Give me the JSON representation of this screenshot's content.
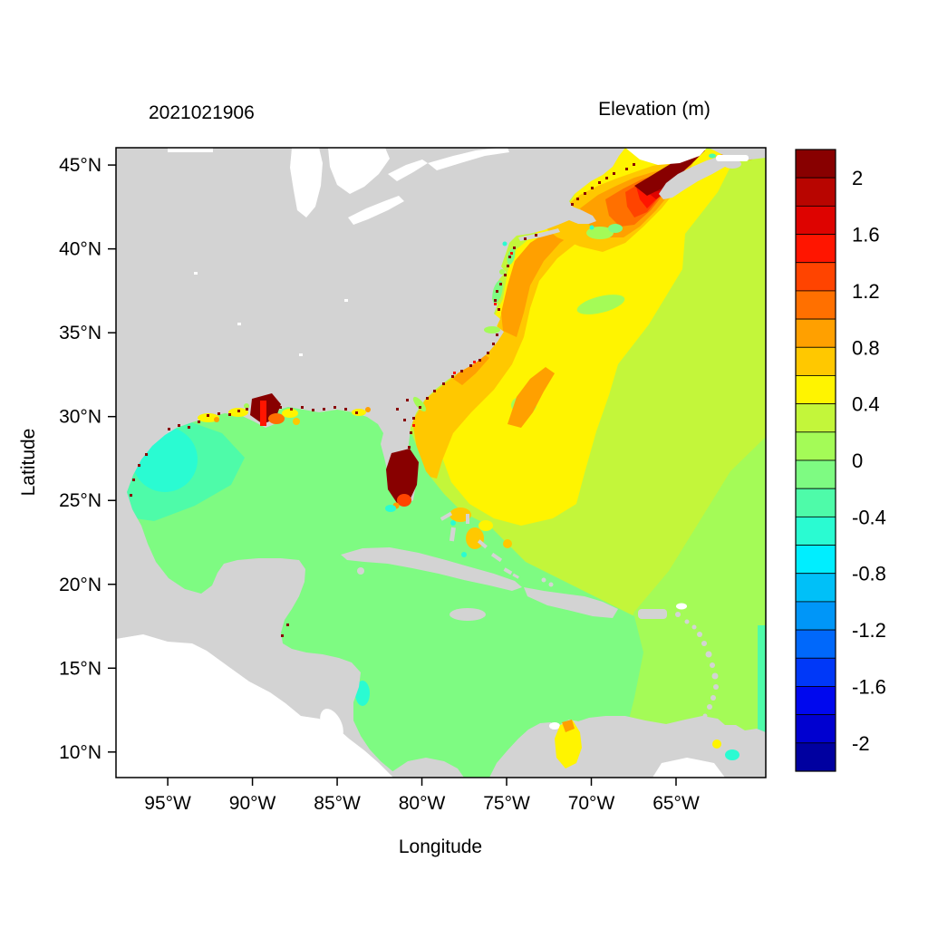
{
  "chart_data": {
    "type": "heatmap",
    "subtype": "filled-contour geographic map (ocean model sea-surface elevation)",
    "title": "2021021906",
    "legend_title": "Elevation (m)",
    "xlabel": "Longitude",
    "ylabel": "Latitude",
    "x_ticks": [
      "95°W",
      "90°W",
      "85°W",
      "80°W",
      "75°W",
      "70°W",
      "65°W"
    ],
    "y_ticks": [
      "45°N",
      "40°N",
      "35°N",
      "30°N",
      "25°N",
      "20°N",
      "15°N",
      "10°N"
    ],
    "x_range_deg_west": [
      98.1,
      59.8
    ],
    "y_range_deg_north": [
      8.5,
      46.0
    ],
    "grid": false,
    "land_color": "#d3d3d3",
    "no_data_color": "#ffffff",
    "colorbar": {
      "position": "right",
      "tick_labels": [
        "2",
        "1.6",
        "1.2",
        "0.8",
        "0.4",
        "0",
        "-0.4",
        "-0.8",
        "-1.2",
        "-1.6",
        "-2"
      ],
      "levels": [
        -2.2,
        -2.0,
        -1.8,
        -1.6,
        -1.4,
        -1.2,
        -1.0,
        -0.8,
        -0.6,
        -0.4,
        -0.2,
        0,
        0.2,
        0.4,
        0.6,
        0.8,
        1.0,
        1.2,
        1.4,
        1.6,
        1.8,
        2.0,
        2.2
      ],
      "colors_bottom_to_top": [
        "#0000A0",
        "#0000D0",
        "#0008EE",
        "#0038F8",
        "#0068FB",
        "#0096F8",
        "#00C0F8",
        "#00EEFF",
        "#2AFBD2",
        "#4EFBA9",
        "#7EFB82",
        "#A4FB57",
        "#C3F63A",
        "#FFF400",
        "#FFC800",
        "#FFA000",
        "#FF7000",
        "#FF4400",
        "#FF1500",
        "#DE0300",
        "#B80500",
        "#880000"
      ]
    },
    "regions": [
      {
        "area": "Gulf of Mexico, central and eastern",
        "elevation_m": "-0.2 to 0"
      },
      {
        "area": "Gulf of Mexico, northwest shelf (Texas-Mexico)",
        "elevation_m": "-0.6 to -0.2"
      },
      {
        "area": "Caribbean Sea",
        "elevation_m": "-0.2 to 0.2"
      },
      {
        "area": "Open Atlantic east of ~70W",
        "elevation_m": "0.2 to 0.4"
      },
      {
        "area": "Atlantic southeast corner / east of Antilles",
        "elevation_m": "0 to 0.2"
      },
      {
        "area": "Western Atlantic / Mid-Atlantic Bight",
        "elevation_m": "0.4 to 0.6"
      },
      {
        "area": "US southeast coastal band (Gulf Stream edge)",
        "elevation_m": "0.6 to 1.0"
      },
      {
        "area": "Gulf of Maine rings",
        "elevation_m": "0.8 to 1.8"
      },
      {
        "area": "Bay of Fundy head",
        "elevation_m": "greater than 2"
      },
      {
        "area": "South Florida / Everglades blob",
        "elevation_m": "greater than 2"
      },
      {
        "area": "Mississippi delta and coastal estuary speckles",
        "elevation_m": "1.4 to greater than 2"
      },
      {
        "area": "Lake Maracaibo",
        "elevation_m": "0.4 to 1.2"
      }
    ]
  }
}
